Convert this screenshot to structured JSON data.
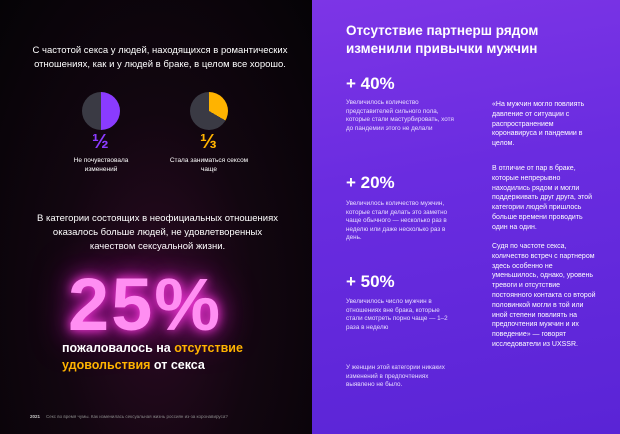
{
  "left": {
    "intro": "С частотой секса у людей, находящихся в романтических отношениях, как и у людей в браке, в целом все хорошо.",
    "pies": [
      {
        "fraction": "½",
        "label": "Не почувствовала изменений",
        "share": 0.5,
        "color": "#8a3bff"
      },
      {
        "fraction": "⅓",
        "label": "Стала заниматься сексом чаще",
        "share": 0.333,
        "color": "#ffb300"
      }
    ],
    "mid_text": "В категории состоящих в неофициальных отношениях оказалось больше людей, не удовлетворенных качеством сексуальной жизни.",
    "big_number": "25%",
    "bottom_pre": "пожаловалось на ",
    "bottom_accent": "отсутствие удовольствия",
    "bottom_post": " от секса",
    "footer_logo": "2021",
    "footer_text": "Секс во время чумы. Как изменилась сексуальная жизнь россиян из-за коронавируса?"
  },
  "right": {
    "title": "Отсутствие партнерш рядом изменили привычки мужчин",
    "stats": [
      {
        "value": "+ 40%",
        "desc": "Увеличилось количество представителей сильного пола, которые стали мастурбировать, хотя до пандемии этого не делали"
      },
      {
        "value": "+ 20%",
        "desc": "Увеличилось количество мужчин, которые стали делать это заметно чаще обычного — несколько раз в неделю или даже несколько раз в день."
      },
      {
        "value": "+ 50%",
        "desc": "Увеличилось число мужчин в отношениях вне брака, которые стали смотреть порно чаще — 1–2 раза в неделю"
      }
    ],
    "note": "У женщин этой категории никаких изменений в предпочтениях выявлено не было.",
    "quote_1": "«На мужчин могло повлиять давление от ситуации с распространением коронавируса и пандемии в целом.",
    "quote_2": "В отличие от пар в браке, которые непрерывно находились рядом и могли поддерживать друг друга, этой категории людей пришлось больше времени проводить один на один.",
    "quote_3": "Судя по частоте секса, количество встреч с партнером здесь особенно не уменьшилось, однако, уровень тревоги и отсутствие постоянного контакта со второй половинкой могли в той или иной степени повлиять на предпочтения мужчин и их поведение» — говорят исследователи из UXSSR."
  }
}
